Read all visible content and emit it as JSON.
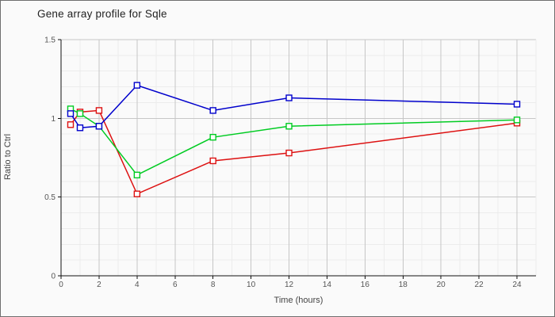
{
  "chart_data": {
    "type": "line",
    "title": "Gene array profile for Sqle",
    "xlabel": "Time (hours)",
    "ylabel": "Ratio to Ctrl",
    "x": [
      0.5,
      1,
      2,
      4,
      8,
      12,
      24
    ],
    "series": [
      {
        "name": "red",
        "color": "#dd1111",
        "values": [
          0.96,
          1.04,
          1.05,
          0.52,
          0.73,
          0.78,
          0.97
        ]
      },
      {
        "name": "green",
        "color": "#00cc22",
        "values": [
          1.06,
          1.03,
          0.95,
          0.64,
          0.88,
          0.95,
          0.99
        ]
      },
      {
        "name": "blue",
        "color": "#0000cc",
        "values": [
          1.03,
          0.94,
          0.95,
          1.21,
          1.05,
          1.13,
          1.09
        ]
      }
    ],
    "xlim": [
      0,
      25
    ],
    "ylim": [
      0,
      1.5
    ],
    "x_major_ticks": [
      0,
      2,
      4,
      6,
      8,
      10,
      12,
      14,
      16,
      18,
      20,
      22,
      24
    ],
    "x_tick_labels": [
      "0",
      "2",
      "4",
      "6",
      "8",
      "10",
      "12",
      "14",
      "16",
      "18",
      "20",
      "22",
      "24"
    ],
    "y_major_ticks": [
      0,
      0.5,
      1,
      1.5
    ],
    "y_tick_labels": [
      "0",
      "0.5",
      "1",
      "1.5"
    ],
    "x_minor_step": 1,
    "y_minor_step": 0.1,
    "grid": "on",
    "legend": "none",
    "marker": "open-square"
  },
  "colors": {
    "background": "#fafafa",
    "frame_border": "#6e6e6e",
    "minor_grid": "#ececec",
    "major_grid": "#c6c6c6",
    "axis": "#111111",
    "tick_text": "#555555",
    "title_text": "#222222"
  }
}
